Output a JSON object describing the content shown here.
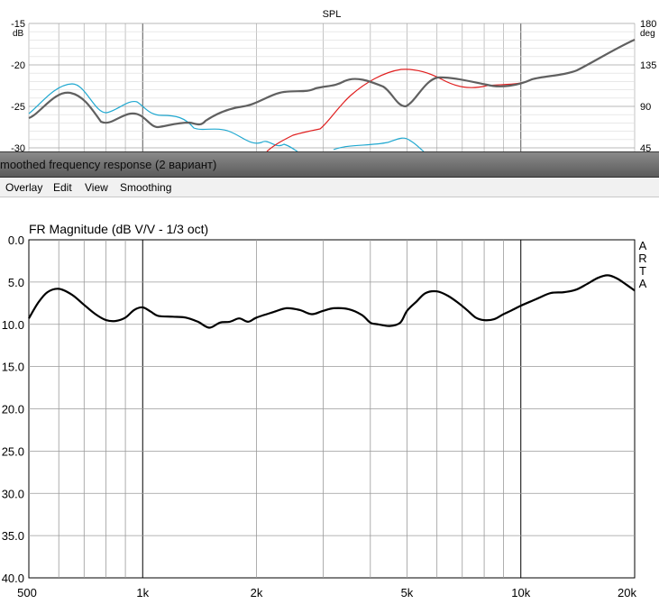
{
  "window": {
    "title": "moothed frequency response (2 вариант)"
  },
  "menu": {
    "items": [
      "Overlay",
      "Edit",
      "View",
      "Smoothing"
    ]
  },
  "top_chart": {
    "type": "line",
    "title": "SPL",
    "left_unit": "dB",
    "right_unit": "deg",
    "left_ticks": [
      "-15",
      "-20",
      "-25",
      "-30"
    ],
    "right_ticks": [
      "180",
      "135",
      "90",
      "45"
    ],
    "colors": {
      "magnitude": "#606060",
      "phase": "#e02020",
      "cyan": "#20a8d0"
    }
  },
  "chart_data": {
    "type": "line",
    "title": "FR Magnitude (dB V/V - 1/3 oct)",
    "watermark": [
      "A",
      "R",
      "T",
      "A"
    ],
    "xscale": "log",
    "xlim": [
      500,
      20000
    ],
    "ylim": [
      0,
      40
    ],
    "y_inverted": true,
    "x_tick_labels": [
      "500",
      "1k",
      "2k",
      "5k",
      "10k",
      "20k"
    ],
    "y_tick_labels": [
      "0.0",
      "5.0",
      "10.0",
      "15.0",
      "20.0",
      "25.0",
      "30.0",
      "35.0",
      "40.0"
    ],
    "grid": true,
    "series": [
      {
        "color": "#000000",
        "x": [
          500,
          530,
          560,
          600,
          650,
          700,
          750,
          800,
          850,
          900,
          950,
          1000,
          1050,
          1100,
          1200,
          1300,
          1400,
          1500,
          1600,
          1700,
          1800,
          1900,
          2000,
          2200,
          2400,
          2600,
          2800,
          3000,
          3200,
          3500,
          3800,
          4000,
          4200,
          4500,
          4800,
          5000,
          5300,
          5600,
          6000,
          6400,
          6800,
          7200,
          7600,
          8000,
          8500,
          9000,
          9500,
          10000,
          11000,
          12000,
          13000,
          14000,
          15000,
          16000,
          17000,
          18000,
          19000,
          20000
        ],
        "y": [
          9.3,
          7.4,
          6.2,
          5.8,
          6.5,
          7.7,
          8.8,
          9.5,
          9.6,
          9.2,
          8.3,
          8.0,
          8.5,
          9.0,
          9.1,
          9.2,
          9.7,
          10.4,
          9.8,
          9.7,
          9.3,
          9.7,
          9.2,
          8.6,
          8.1,
          8.3,
          8.8,
          8.4,
          8.1,
          8.2,
          8.9,
          9.8,
          10.0,
          10.2,
          9.8,
          8.4,
          7.3,
          6.3,
          6.1,
          6.6,
          7.4,
          8.3,
          9.2,
          9.5,
          9.4,
          8.8,
          8.3,
          7.8,
          7.0,
          6.3,
          6.2,
          5.9,
          5.2,
          4.5,
          4.2,
          4.6,
          5.3,
          6.0
        ]
      }
    ]
  }
}
